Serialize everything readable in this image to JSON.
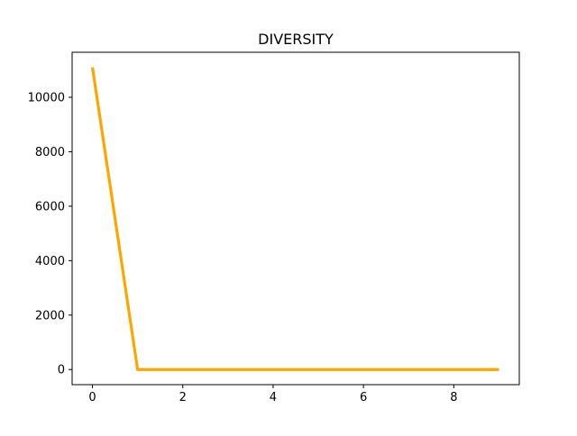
{
  "chart_data": {
    "type": "line",
    "title": "DIVERSITY",
    "xlabel": "",
    "ylabel": "",
    "x": [
      0,
      1,
      2,
      3,
      4,
      5,
      6,
      7,
      8,
      9
    ],
    "series": [
      {
        "values": [
          11100,
          0,
          0,
          0,
          0,
          0,
          0,
          0,
          0,
          0
        ],
        "color": "#ffa500"
      }
    ],
    "xlim": [
      -0.45,
      9.45
    ],
    "ylim": [
      -555,
      11655
    ],
    "x_ticks": [
      0,
      2,
      4,
      6,
      8
    ],
    "y_ticks": [
      0,
      2000,
      4000,
      6000,
      8000,
      10000
    ],
    "grid": false,
    "legend": "none"
  }
}
